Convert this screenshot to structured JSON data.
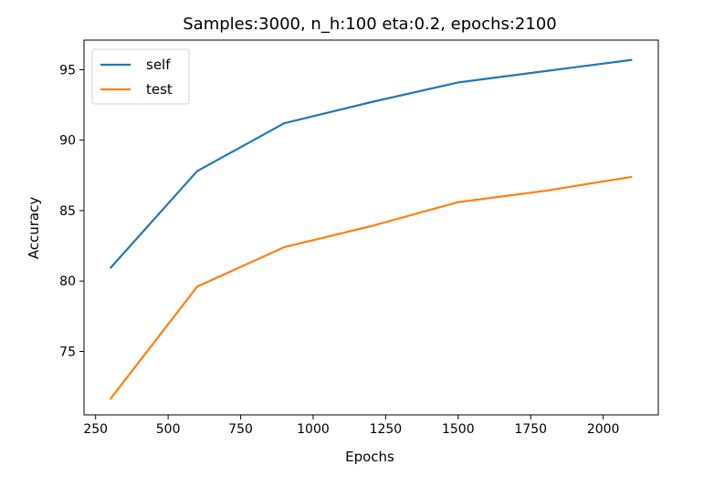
{
  "chart_data": {
    "type": "line",
    "title": "Samples:3000, n_h:100 eta:0.2, epochs:2100",
    "xlabel": "Epochs",
    "ylabel": "Accuracy",
    "xlim": [
      210,
      2190
    ],
    "ylim": [
      70.5,
      97.1
    ],
    "xticks": [
      250,
      500,
      750,
      1000,
      1250,
      1500,
      1750,
      2000
    ],
    "yticks": [
      75,
      80,
      85,
      90,
      95
    ],
    "x": [
      300,
      600,
      900,
      1200,
      1500,
      1800,
      2100
    ],
    "series": [
      {
        "name": "self",
        "color": "#1f77b4",
        "values": [
          80.9,
          87.8,
          91.2,
          92.7,
          94.1,
          94.9,
          95.7
        ]
      },
      {
        "name": "test",
        "color": "#ff7f0e",
        "values": [
          71.6,
          79.6,
          82.4,
          83.9,
          85.6,
          86.4,
          87.4
        ]
      }
    ],
    "grid": false,
    "legend_position": "upper-left"
  }
}
